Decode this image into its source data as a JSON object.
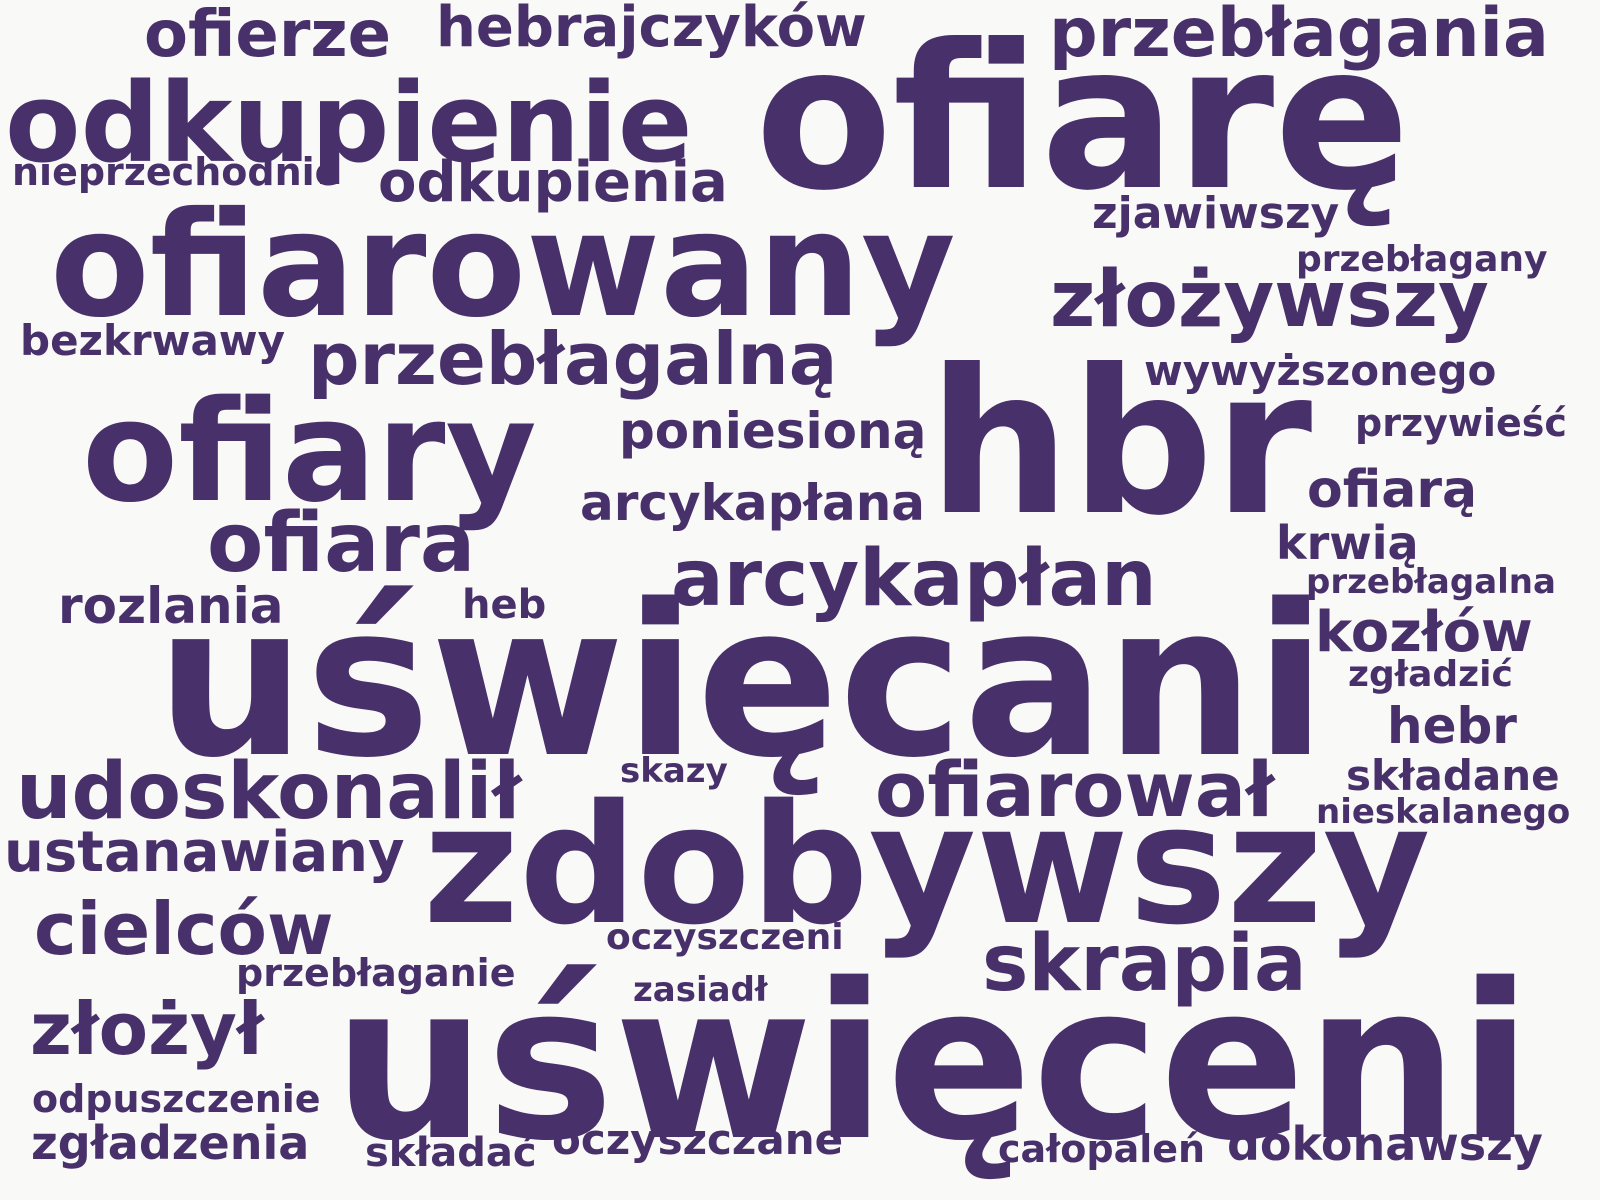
{
  "text_color": "#48306a",
  "background_color": "#f9f9f7",
  "words": [
    "ofiarę",
    "uświęcani",
    "uświęceni",
    "zdobywszy",
    "hbr",
    "ofiarowany",
    "ofiary",
    "odkupienie",
    "przebłagania",
    "złożywszy",
    "arcykapłan",
    "przebłagalną",
    "ofiarował",
    "udoskonalił",
    "ofiara",
    "skrapia",
    "cielców",
    "ofierze",
    "hebrajczyków",
    "złożył",
    "odkupienia",
    "ustanawiany",
    "arcykapłana",
    "poniesioną",
    "kozłów",
    "ofiarą",
    "zjawiwszy",
    "zgładzenia",
    "dokonawszy",
    "oczyszczane",
    "rozlania",
    "hebr",
    "wywyższonego",
    "bezkrwawy",
    "składane",
    "krwią",
    "nieprzechodnie",
    "przebłagany",
    "przywieść",
    "przebłaganie",
    "odpuszczenie",
    "oczyszczeni",
    "heb",
    "przebłagalna",
    "składać",
    "całopaleń",
    "zgładzić",
    "skazy",
    "zasiadł",
    "nieskalanego"
  ]
}
